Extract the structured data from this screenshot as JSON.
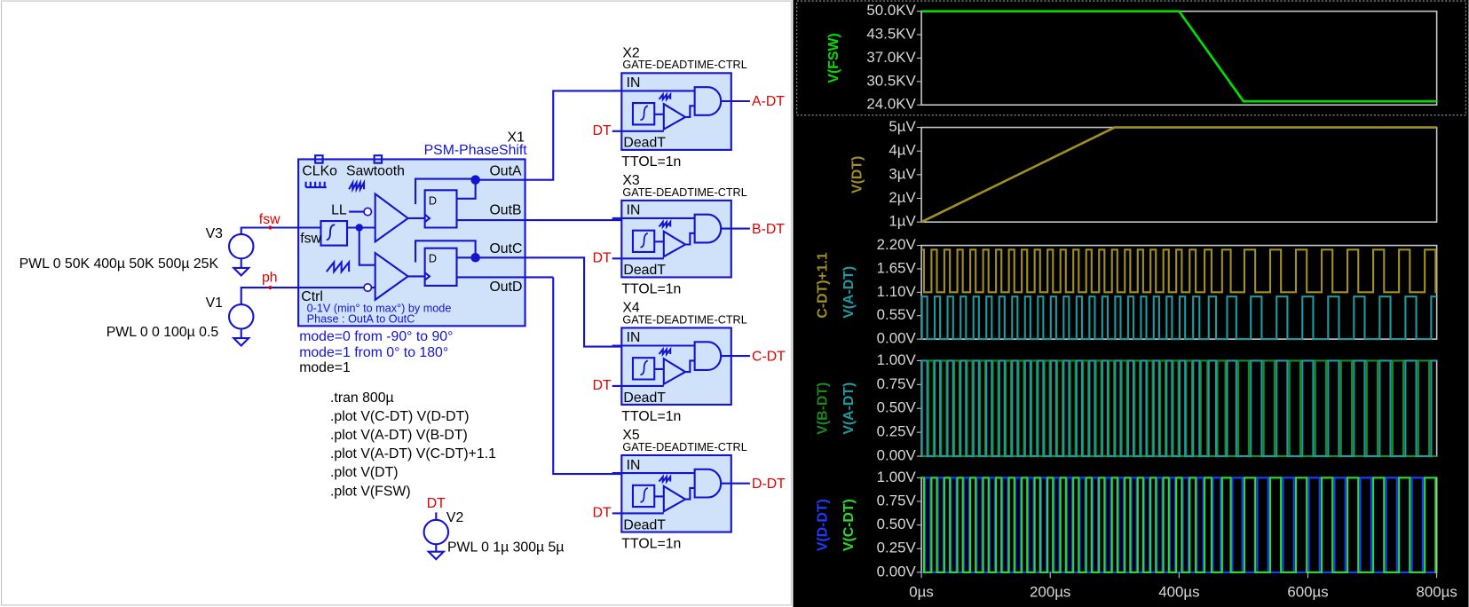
{
  "schematic": {
    "x1": {
      "name": "X1",
      "type": "PSM-PhaseShift",
      "clk": "CLKo",
      "saw": "Sawtooth",
      "ll": "LL",
      "fsw": "fsw",
      "ctrl": "Ctrl",
      "outs": [
        "OutA",
        "OutB",
        "OutC",
        "OutD"
      ],
      "ff": "D",
      "notes": [
        "0-1V (min° to max°) by mode",
        "Phase : OutA to OutC"
      ]
    },
    "mode_notes": [
      "mode=0 from -90° to 90°",
      "mode=1 from  0° to 180°",
      "mode=1"
    ],
    "sources": [
      {
        "name": "V3",
        "value": "PWL 0 50K 400µ 50K 500µ 25K",
        "net": "fsw"
      },
      {
        "name": "V1",
        "value": "PWL 0 0 100µ 0.5",
        "net": "ph"
      },
      {
        "name": "V2",
        "value": "PWL 0 1µ 300µ 5µ",
        "net": "DT"
      }
    ],
    "directives": [
      ".tran 800µ",
      ".plot V(C-DT) V(D-DT)",
      ".plot V(A-DT) V(B-DT)",
      ".plot V(A-DT) V(C-DT)+1.1",
      ".plot V(DT)",
      ".plot V(FSW)"
    ],
    "gates": [
      {
        "name": "X2",
        "type": "GATE-DEADTIME-CTRL",
        "in": "IN",
        "deadt": "DeadT",
        "param": "TTOL=1n",
        "dt_net": "DT",
        "out_net": "A-DT"
      },
      {
        "name": "X3",
        "type": "GATE-DEADTIME-CTRL",
        "in": "IN",
        "deadt": "DeadT",
        "param": "TTOL=1n",
        "dt_net": "DT",
        "out_net": "B-DT"
      },
      {
        "name": "X4",
        "type": "GATE-DEADTIME-CTRL",
        "in": "IN",
        "deadt": "DeadT",
        "param": "TTOL=1n",
        "dt_net": "DT",
        "out_net": "C-DT"
      },
      {
        "name": "X5",
        "type": "GATE-DEADTIME-CTRL",
        "in": "IN",
        "deadt": "DeadT",
        "param": "TTOL=1n",
        "dt_net": "DT",
        "out_net": "D-DT"
      }
    ]
  },
  "waveforms": {
    "xlim": [
      0,
      0.0008
    ],
    "xticks": [
      {
        "value": 0,
        "label": "0µs"
      },
      {
        "value": 0.0002,
        "label": "200µs"
      },
      {
        "value": 0.0004,
        "label": "400µs"
      },
      {
        "value": 0.0006,
        "label": "600µs"
      },
      {
        "value": 0.0008,
        "label": "800µs"
      }
    ],
    "panes": [
      {
        "ylim": [
          24000,
          50000
        ],
        "yticks": [
          {
            "value": 50000,
            "label": "50.0KV"
          },
          {
            "value": 43500,
            "label": "43.5KV"
          },
          {
            "value": 37000,
            "label": "37.0KV"
          },
          {
            "value": 30500,
            "label": "30.5KV"
          },
          {
            "value": 24000,
            "label": "24.0KV"
          }
        ],
        "traces": [
          {
            "name": "V(FSW)",
            "color": "#00e000",
            "x": [
              0,
              0.0004,
              0.0005,
              0.0008
            ],
            "values": [
              50000,
              50000,
              25000,
              25000
            ]
          }
        ]
      },
      {
        "ylim": [
          1e-06,
          5e-06
        ],
        "yticks": [
          {
            "value": 5e-06,
            "label": "5µV"
          },
          {
            "value": 4e-06,
            "label": "4µV"
          },
          {
            "value": 3e-06,
            "label": "3µV"
          },
          {
            "value": 2e-06,
            "label": "2µV"
          },
          {
            "value": 1e-06,
            "label": "1µV"
          }
        ],
        "traces": [
          {
            "name": "V(DT)",
            "color": "#a09020",
            "x": [
              0,
              0.0003,
              0.0008
            ],
            "values": [
              1e-06,
              5e-06,
              5e-06
            ]
          }
        ]
      },
      {
        "ylim": [
          0,
          2.2
        ],
        "yticks": [
          {
            "value": 2.2,
            "label": "2.20V"
          },
          {
            "value": 1.65,
            "label": "1.65V"
          },
          {
            "value": 1.1,
            "label": "1.10V"
          },
          {
            "value": 0.55,
            "label": "0.55V"
          },
          {
            "value": 0,
            "label": "0.00V"
          }
        ],
        "traces": [
          {
            "name": "V(C-DT)+1.1",
            "color": "#a09020",
            "low": 1.1,
            "high": 2.1
          },
          {
            "name": "V(A-DT)",
            "color": "#1a9ca0",
            "low": 0,
            "high": 1
          }
        ]
      },
      {
        "ylim": [
          0,
          1
        ],
        "yticks": [
          {
            "value": 1,
            "label": "1.00V"
          },
          {
            "value": 0.75,
            "label": "0.75V"
          },
          {
            "value": 0.5,
            "label": "0.50V"
          },
          {
            "value": 0.25,
            "label": "0.25V"
          },
          {
            "value": 0,
            "label": "0.00V"
          }
        ],
        "traces": [
          {
            "name": "V(B-DT)",
            "color": "#1a8a1a",
            "low": 0,
            "high": 1
          },
          {
            "name": "V(A-DT)",
            "color": "#1a9ca0",
            "low": 0,
            "high": 1
          }
        ]
      },
      {
        "ylim": [
          0,
          1
        ],
        "yticks": [
          {
            "value": 1,
            "label": "1.00V"
          },
          {
            "value": 0.75,
            "label": "0.75V"
          },
          {
            "value": 0.5,
            "label": "0.50V"
          },
          {
            "value": 0.25,
            "label": "0.25V"
          },
          {
            "value": 0,
            "label": "0.00V"
          }
        ],
        "traces": [
          {
            "name": "V(D-DT)",
            "color": "#1c3cff",
            "low": 0,
            "high": 1
          },
          {
            "name": "V(C-DT)",
            "color": "#2bdc2b",
            "low": 0,
            "high": 1
          }
        ]
      }
    ]
  }
}
